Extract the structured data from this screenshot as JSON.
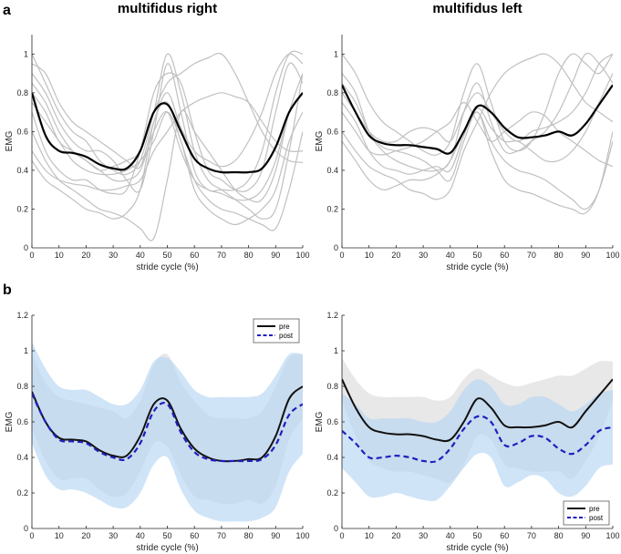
{
  "panel_labels": [
    "a",
    "b"
  ],
  "colors": {
    "individual": "#c0c0c0",
    "pre": "#111111",
    "post": "#1f1fbf",
    "pre_band": "#d9d9d9",
    "post_band": "#b7d6f2"
  },
  "chart_data": [
    {
      "id": "a-right",
      "type": "line",
      "title": "multifidus right",
      "xlabel": "stride cycle (%)",
      "ylabel": "EMG",
      "xlim": [
        0,
        100
      ],
      "ylim": [
        0,
        1.1
      ],
      "xticks": [
        "0",
        "10",
        "20",
        "30",
        "40",
        "50",
        "60",
        "70",
        "80",
        "90",
        "100"
      ],
      "yticks": [
        "0.2",
        "0.4",
        "0.6",
        "0.8",
        "1"
      ],
      "x": [
        0,
        5,
        10,
        15,
        20,
        25,
        30,
        35,
        40,
        45,
        50,
        55,
        60,
        65,
        70,
        75,
        80,
        85,
        90,
        95,
        100
      ],
      "individual": [
        [
          1.0,
          0.85,
          0.7,
          0.6,
          0.55,
          0.45,
          0.4,
          0.38,
          0.45,
          0.7,
          1.0,
          0.8,
          0.5,
          0.35,
          0.3,
          0.25,
          0.2,
          0.15,
          0.2,
          0.5,
          0.9
        ],
        [
          0.9,
          0.8,
          0.65,
          0.55,
          0.5,
          0.5,
          0.45,
          0.35,
          0.3,
          0.6,
          0.95,
          0.7,
          0.4,
          0.3,
          0.3,
          0.3,
          0.35,
          0.5,
          0.8,
          1.0,
          1.0
        ],
        [
          0.7,
          0.5,
          0.4,
          0.35,
          0.35,
          0.3,
          0.28,
          0.3,
          0.5,
          0.8,
          0.9,
          0.85,
          0.6,
          0.4,
          0.35,
          0.3,
          0.3,
          0.4,
          0.7,
          0.95,
          0.85
        ],
        [
          0.6,
          0.45,
          0.35,
          0.3,
          0.25,
          0.2,
          0.18,
          0.15,
          0.1,
          0.05,
          0.35,
          0.7,
          0.6,
          0.5,
          0.4,
          0.3,
          0.25,
          0.25,
          0.4,
          0.7,
          0.9
        ],
        [
          0.85,
          0.75,
          0.6,
          0.5,
          0.45,
          0.4,
          0.42,
          0.45,
          0.5,
          0.7,
          0.85,
          0.9,
          0.95,
          0.98,
          1.0,
          0.9,
          0.75,
          0.6,
          0.5,
          0.45,
          0.44
        ],
        [
          0.45,
          0.35,
          0.3,
          0.25,
          0.2,
          0.18,
          0.15,
          0.18,
          0.3,
          0.65,
          0.75,
          0.55,
          0.35,
          0.25,
          0.2,
          0.18,
          0.15,
          0.12,
          0.1,
          0.3,
          0.6
        ],
        [
          0.8,
          0.7,
          0.55,
          0.5,
          0.45,
          0.4,
          0.35,
          0.35,
          0.4,
          0.6,
          0.7,
          0.5,
          0.35,
          0.3,
          0.28,
          0.25,
          0.25,
          0.3,
          0.45,
          0.7,
          0.8
        ],
        [
          0.95,
          0.9,
          0.75,
          0.65,
          0.6,
          0.55,
          0.5,
          0.45,
          0.42,
          0.65,
          0.8,
          0.62,
          0.5,
          0.45,
          0.42,
          0.45,
          0.55,
          0.7,
          0.9,
          1.0,
          0.95
        ],
        [
          0.5,
          0.4,
          0.35,
          0.33,
          0.32,
          0.3,
          0.3,
          0.32,
          0.35,
          0.5,
          0.6,
          0.7,
          0.75,
          0.78,
          0.8,
          0.78,
          0.75,
          0.65,
          0.55,
          0.5,
          0.5
        ],
        [
          0.75,
          0.65,
          0.55,
          0.45,
          0.4,
          0.38,
          0.38,
          0.4,
          0.45,
          0.55,
          0.7,
          0.55,
          0.3,
          0.2,
          0.15,
          0.12,
          0.15,
          0.2,
          0.3,
          0.55,
          0.7
        ]
      ],
      "mean": [
        0.8,
        0.58,
        0.5,
        0.49,
        0.47,
        0.43,
        0.41,
        0.41,
        0.5,
        0.7,
        0.74,
        0.6,
        0.46,
        0.41,
        0.39,
        0.39,
        0.39,
        0.41,
        0.52,
        0.7,
        0.8
      ]
    },
    {
      "id": "a-left",
      "type": "line",
      "title": "multifidus left",
      "xlabel": "stride cycle (%)",
      "ylabel": "EMG",
      "xlim": [
        0,
        100
      ],
      "ylim": [
        0,
        1.1
      ],
      "xticks": [
        "0",
        "10",
        "20",
        "30",
        "40",
        "50",
        "60",
        "70",
        "80",
        "90",
        "100"
      ],
      "yticks": [
        "0.2",
        "0.4",
        "0.6",
        "0.8",
        "1"
      ],
      "x": [
        0,
        5,
        10,
        15,
        20,
        25,
        30,
        35,
        40,
        45,
        50,
        55,
        60,
        65,
        70,
        75,
        80,
        85,
        90,
        95,
        100
      ],
      "individual": [
        [
          1.0,
          0.9,
          0.75,
          0.65,
          0.6,
          0.55,
          0.5,
          0.48,
          0.55,
          0.8,
          0.95,
          0.75,
          0.55,
          0.5,
          0.55,
          0.7,
          0.9,
          1.0,
          0.95,
          0.9,
          1.0
        ],
        [
          0.9,
          0.8,
          0.6,
          0.5,
          0.45,
          0.42,
          0.4,
          0.4,
          0.45,
          0.7,
          0.85,
          0.65,
          0.5,
          0.5,
          0.55,
          0.6,
          0.7,
          0.85,
          1.0,
          0.95,
          0.85
        ],
        [
          0.55,
          0.45,
          0.35,
          0.3,
          0.32,
          0.35,
          0.35,
          0.38,
          0.45,
          0.6,
          0.7,
          0.55,
          0.45,
          0.4,
          0.38,
          0.35,
          0.3,
          0.25,
          0.2,
          0.3,
          0.55
        ],
        [
          0.7,
          0.6,
          0.5,
          0.48,
          0.5,
          0.52,
          0.55,
          0.6,
          0.65,
          0.75,
          0.65,
          0.55,
          0.6,
          0.65,
          0.7,
          0.68,
          0.6,
          0.55,
          0.5,
          0.45,
          0.42
        ],
        [
          0.85,
          0.75,
          0.6,
          0.52,
          0.5,
          0.48,
          0.45,
          0.4,
          0.35,
          0.55,
          0.7,
          0.5,
          0.35,
          0.3,
          0.28,
          0.25,
          0.22,
          0.2,
          0.18,
          0.3,
          0.6
        ],
        [
          0.6,
          0.5,
          0.42,
          0.38,
          0.35,
          0.3,
          0.28,
          0.25,
          0.3,
          0.5,
          0.65,
          0.8,
          0.9,
          0.95,
          0.98,
          1.0,
          0.95,
          0.85,
          0.75,
          0.7,
          0.65
        ],
        [
          0.8,
          0.7,
          0.6,
          0.55,
          0.55,
          0.6,
          0.62,
          0.6,
          0.55,
          0.7,
          0.8,
          0.7,
          0.6,
          0.55,
          0.6,
          0.62,
          0.65,
          0.7,
          0.8,
          0.95,
          1.0
        ],
        [
          0.75,
          0.65,
          0.5,
          0.42,
          0.4,
          0.38,
          0.4,
          0.42,
          0.4,
          0.58,
          0.72,
          0.62,
          0.55,
          0.55,
          0.5,
          0.45,
          0.45,
          0.5,
          0.6,
          0.75,
          0.9
        ]
      ],
      "mean": [
        0.84,
        0.7,
        0.58,
        0.54,
        0.53,
        0.53,
        0.52,
        0.51,
        0.49,
        0.6,
        0.73,
        0.7,
        0.62,
        0.57,
        0.57,
        0.58,
        0.6,
        0.58,
        0.64,
        0.74,
        0.84
      ]
    },
    {
      "id": "b-right",
      "type": "line",
      "title": "",
      "xlabel": "stride cycle (%)",
      "ylabel": "EMG",
      "xlim": [
        0,
        100
      ],
      "ylim": [
        0,
        1.2
      ],
      "xticks": [
        "0",
        "10",
        "20",
        "30",
        "40",
        "50",
        "60",
        "70",
        "80",
        "90",
        "100"
      ],
      "yticks": [
        "0.2",
        "0.4",
        "0.6",
        "0.8",
        "1",
        "1.2"
      ],
      "legend_position": "top-right",
      "x": [
        0,
        5,
        10,
        15,
        20,
        25,
        30,
        35,
        40,
        45,
        50,
        55,
        60,
        65,
        70,
        75,
        80,
        85,
        90,
        95,
        100
      ],
      "series": [
        {
          "name": "pre",
          "style": "solid",
          "values": [
            0.77,
            0.6,
            0.51,
            0.5,
            0.49,
            0.44,
            0.41,
            0.41,
            0.52,
            0.7,
            0.72,
            0.56,
            0.45,
            0.4,
            0.38,
            0.38,
            0.39,
            0.4,
            0.52,
            0.73,
            0.8
          ],
          "upper": [
            0.98,
            0.82,
            0.74,
            0.72,
            0.7,
            0.68,
            0.66,
            0.62,
            0.72,
            0.92,
            0.98,
            0.82,
            0.72,
            0.64,
            0.62,
            0.62,
            0.62,
            0.66,
            0.8,
            0.96,
            0.98
          ],
          "lower": [
            0.56,
            0.38,
            0.28,
            0.28,
            0.28,
            0.22,
            0.18,
            0.2,
            0.32,
            0.48,
            0.46,
            0.3,
            0.18,
            0.16,
            0.14,
            0.14,
            0.16,
            0.14,
            0.24,
            0.5,
            0.62
          ]
        },
        {
          "name": "post",
          "style": "dashed",
          "values": [
            0.76,
            0.6,
            0.5,
            0.49,
            0.48,
            0.43,
            0.4,
            0.39,
            0.48,
            0.66,
            0.7,
            0.54,
            0.43,
            0.39,
            0.38,
            0.38,
            0.38,
            0.39,
            0.47,
            0.64,
            0.7
          ],
          "upper": [
            1.05,
            0.9,
            0.8,
            0.78,
            0.78,
            0.74,
            0.7,
            0.7,
            0.78,
            0.94,
            0.96,
            0.88,
            0.78,
            0.74,
            0.74,
            0.74,
            0.74,
            0.76,
            0.86,
            0.98,
            0.98
          ],
          "lower": [
            0.48,
            0.3,
            0.22,
            0.22,
            0.2,
            0.16,
            0.12,
            0.12,
            0.2,
            0.36,
            0.4,
            0.22,
            0.1,
            0.06,
            0.04,
            0.04,
            0.04,
            0.06,
            0.12,
            0.32,
            0.42
          ]
        }
      ]
    },
    {
      "id": "b-left",
      "type": "line",
      "title": "",
      "xlabel": "stride cycle (%)",
      "ylabel": "EMG",
      "xlim": [
        0,
        100
      ],
      "ylim": [
        0,
        1.2
      ],
      "xticks": [
        "0",
        "10",
        "20",
        "30",
        "40",
        "50",
        "60",
        "70",
        "80",
        "90",
        "100"
      ],
      "yticks": [
        "0.2",
        "0.4",
        "0.6",
        "0.8",
        "1",
        "1.2"
      ],
      "legend_position": "bottom-right",
      "x": [
        0,
        5,
        10,
        15,
        20,
        25,
        30,
        35,
        40,
        45,
        50,
        55,
        60,
        65,
        70,
        75,
        80,
        85,
        90,
        95,
        100
      ],
      "series": [
        {
          "name": "pre",
          "style": "solid",
          "values": [
            0.84,
            0.68,
            0.57,
            0.54,
            0.53,
            0.53,
            0.52,
            0.5,
            0.5,
            0.6,
            0.73,
            0.68,
            0.58,
            0.57,
            0.57,
            0.58,
            0.6,
            0.57,
            0.66,
            0.75,
            0.84
          ],
          "upper": [
            0.96,
            0.84,
            0.76,
            0.74,
            0.74,
            0.74,
            0.74,
            0.72,
            0.74,
            0.84,
            0.9,
            0.86,
            0.82,
            0.8,
            0.82,
            0.84,
            0.86,
            0.86,
            0.9,
            0.94,
            0.94
          ],
          "lower": [
            0.72,
            0.52,
            0.38,
            0.34,
            0.32,
            0.32,
            0.3,
            0.28,
            0.26,
            0.36,
            0.52,
            0.5,
            0.36,
            0.34,
            0.32,
            0.32,
            0.32,
            0.28,
            0.38,
            0.52,
            0.72
          ]
        },
        {
          "name": "post",
          "style": "dashed",
          "values": [
            0.55,
            0.48,
            0.4,
            0.4,
            0.41,
            0.4,
            0.38,
            0.38,
            0.45,
            0.56,
            0.63,
            0.6,
            0.47,
            0.48,
            0.52,
            0.51,
            0.45,
            0.42,
            0.47,
            0.55,
            0.57
          ],
          "upper": [
            0.76,
            0.7,
            0.62,
            0.62,
            0.62,
            0.62,
            0.6,
            0.6,
            0.66,
            0.78,
            0.84,
            0.8,
            0.7,
            0.7,
            0.74,
            0.74,
            0.7,
            0.66,
            0.7,
            0.76,
            0.78
          ],
          "lower": [
            0.34,
            0.26,
            0.18,
            0.18,
            0.2,
            0.18,
            0.16,
            0.16,
            0.24,
            0.34,
            0.42,
            0.4,
            0.24,
            0.26,
            0.3,
            0.28,
            0.2,
            0.18,
            0.24,
            0.34,
            0.36
          ]
        }
      ]
    }
  ]
}
